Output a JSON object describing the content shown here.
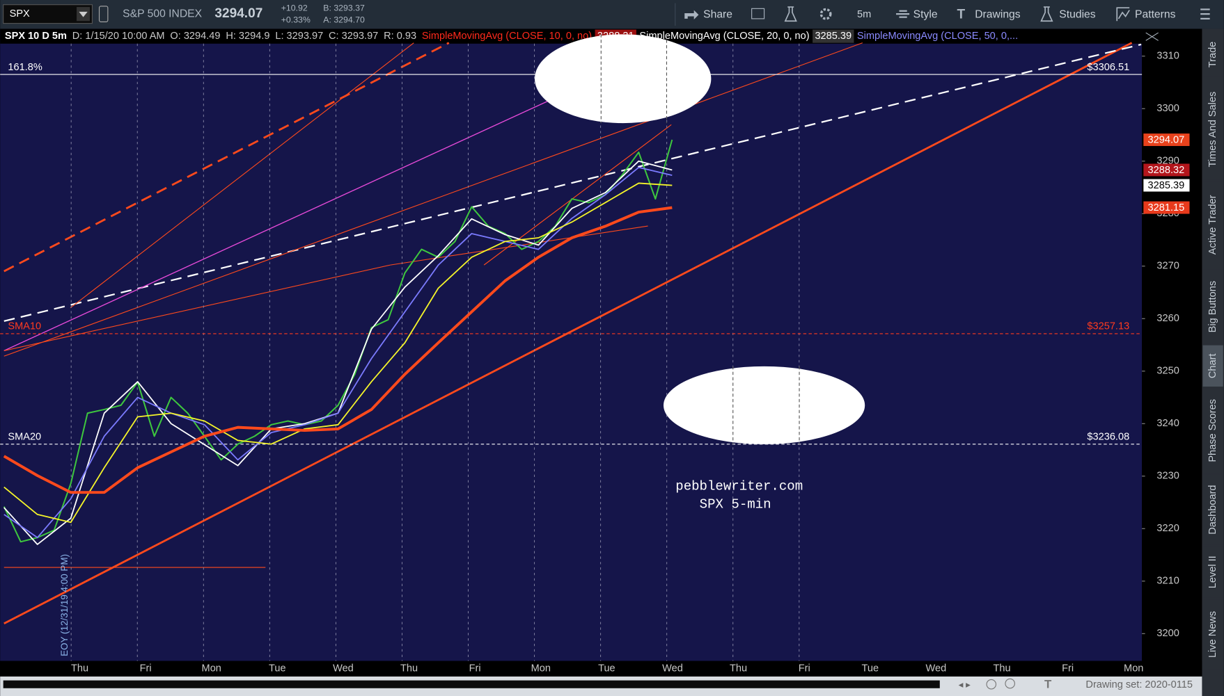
{
  "toolbar": {
    "symbol": "SPX",
    "description": "S&P 500 INDEX",
    "last": "3294.07",
    "change": "+10.92",
    "change_percent": "+0.33%",
    "bid": "B: 3293.37",
    "ask": "A: 3294.70",
    "buttons": [
      "Share",
      "5m",
      "Style",
      "Drawings",
      "Studies",
      "Patterns"
    ]
  },
  "study_header": {
    "chart": "SPX 10 D 5m",
    "date": "D: 1/15/20 10:00 AM",
    "open": "O: 3294.49",
    "high": "H: 3294.9",
    "low": "L: 3293.97",
    "close": "C: 3293.97",
    "range": "R: 0.93",
    "sma10": "SimpleMovingAvg (CLOSE, 10, 0, no)",
    "sma10_value": "3288.31",
    "sma20": "SimpleMovingAvg (CLOSE, 20, 0, no)",
    "sma20_value": "3285.39",
    "sma50": "SimpleMovingAvg (CLOSE, 50, 0,..."
  },
  "chart": {
    "type": "line",
    "ylim": [
      3194.8,
      3315.2
    ],
    "yticks": [
      3200,
      3210,
      3220,
      3230,
      3240,
      3250,
      3260,
      3270,
      3280,
      3290,
      3300,
      3310
    ],
    "x_labels": [
      "Thu",
      "Fri",
      "Mon",
      "Tue",
      "Wed",
      "Thu",
      "Fri",
      "Mon",
      "Tue",
      "Wed",
      "Thu",
      "Fri",
      "Tue",
      "Wed",
      "Thu",
      "Fri",
      "Mon"
    ],
    "series": [
      {
        "color": "#3ec73e",
        "values": [
          3224.2,
          3217.5,
          3218.3,
          3219.7,
          3228.6,
          3242.0,
          3242.7,
          3243.5,
          3247.9,
          3237.6,
          3245.0,
          3242.0,
          3237.6,
          3233.1,
          3236.1,
          3237.6,
          3239.8,
          3240.5,
          3239.8,
          3240.5,
          3243.5,
          3249.4,
          3258.3,
          3259.8,
          3268.7,
          3273.2,
          3271.7,
          3274.7,
          3281.3,
          3277.6,
          3276.2,
          3273.2,
          3274.7,
          3277.6,
          3282.8,
          3282.1,
          3283.6,
          3287.3,
          3291.7,
          3282.8,
          3294.07
        ]
      },
      {
        "color": "#ffffff",
        "values": [
          3224,
          3217,
          3222,
          3242,
          3248,
          3240,
          3236,
          3232,
          3239,
          3240,
          3242,
          3258,
          3266,
          3272,
          3279,
          3276,
          3274,
          3281,
          3284,
          3290,
          3288.32
        ]
      },
      {
        "color": "#7b7bff",
        "values": [
          3222.7,
          3218.3,
          3225.7,
          3237.6,
          3245.0,
          3242.0,
          3239.8,
          3233.1,
          3238.3,
          3239.8,
          3242.0,
          3252.4,
          3261.3,
          3270.2,
          3276.2,
          3274.7,
          3273.2,
          3279.1,
          3283.6,
          3288.8,
          3287.3
        ]
      },
      {
        "color": "#f5f52a",
        "values": [
          3227.9,
          3222.7,
          3221.2,
          3231.6,
          3241.3,
          3242.0,
          3240.5,
          3236.8,
          3236.1,
          3239.0,
          3239.8,
          3248.0,
          3255.4,
          3265.8,
          3271.7,
          3274.7,
          3275.4,
          3278.4,
          3282.1,
          3285.8,
          3285.39
        ]
      },
      {
        "color": "#ff4a1c",
        "values": [
          3233.8,
          3230.1,
          3226.9,
          3226.9,
          3231.6,
          3234.6,
          3237.6,
          3239.3,
          3239.0,
          3238.7,
          3239.0,
          3242.7,
          3249.4,
          3255.4,
          3261.3,
          3267.2,
          3271.7,
          3275.4,
          3277.6,
          3280.3,
          3281.15
        ]
      }
    ],
    "levels": [
      {
        "label": "161.8%",
        "value": 3306.51,
        "price_label": "$3306.51",
        "color": "#ffffff",
        "dashed": false
      },
      {
        "label": "SMA10",
        "value": 3257.13,
        "price_label": "$3257.13",
        "color": "#ff3b1f",
        "dashed": true
      },
      {
        "label": "SMA20",
        "value": 3236.08,
        "price_label": "$3236.08",
        "color": "#ffffff",
        "dashed": true
      }
    ],
    "price_tags": [
      {
        "value": 3294.07,
        "label": "3294.07",
        "color": "#e8421c"
      },
      {
        "value": 3288.32,
        "label": "3288.32",
        "color": "#b3161c"
      },
      {
        "value": 3285.39,
        "label": "3285.39",
        "color": "#ffffff"
      },
      {
        "value": 3281.15,
        "label": "3281.15",
        "color": "#e83a1c"
      }
    ],
    "watermark": [
      "pebblewriter.com",
      "SPX 5-min"
    ],
    "eoy_label": "EOY (12/31/19 4:00 PM)"
  },
  "side_tabs": [
    "Trade",
    "Times And Sales",
    "Active Trader",
    "Big Buttons",
    "Chart",
    "Phase Scores",
    "Dashboard",
    "Level II",
    "Live News"
  ],
  "status_bar": {
    "drawing_set": "Drawing set: 2020-0115"
  }
}
